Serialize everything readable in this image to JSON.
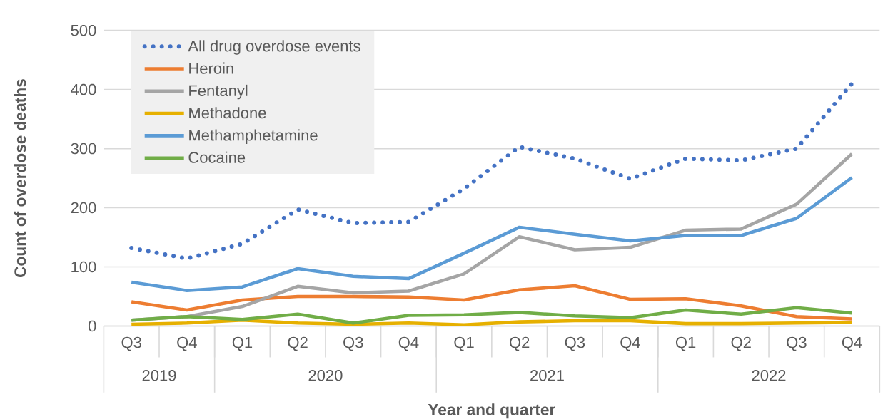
{
  "chart_data": {
    "type": "line",
    "xlabel": "Year and quarter",
    "ylabel": "Count of overdose deaths",
    "categories": [
      "Q3",
      "Q4",
      "Q1",
      "Q2",
      "Q3",
      "Q4",
      "Q1",
      "Q2",
      "Q3",
      "Q4",
      "Q1",
      "Q2",
      "Q3",
      "Q4"
    ],
    "annotations": [
      "2019",
      "2020",
      "2021",
      "2022"
    ],
    "ylim": [
      0,
      500
    ],
    "yticks": [
      0,
      100,
      200,
      300,
      400,
      500
    ],
    "grid": "y",
    "legend": "top left",
    "marker": "none",
    "series": [
      {
        "name": "All drug overdose events",
        "color": "#4472c4",
        "line_style": "dotted",
        "values": [
          132,
          114,
          139,
          197,
          174,
          176,
          232,
          303,
          283,
          249,
          283,
          280,
          300,
          410
        ]
      },
      {
        "name": "Heroin",
        "color": "#ed7d31",
        "values": [
          41,
          27,
          44,
          50,
          50,
          49,
          44,
          61,
          68,
          45,
          46,
          34,
          16,
          12
        ]
      },
      {
        "name": "Fentanyl",
        "color": "#a5a5a5",
        "values": [
          10,
          16,
          33,
          67,
          56,
          59,
          88,
          151,
          129,
          133,
          162,
          164,
          206,
          291
        ]
      },
      {
        "name": "Methadone",
        "color": "#e6b000",
        "values": [
          3,
          5,
          10,
          5,
          3,
          5,
          2,
          7,
          9,
          9,
          4,
          4,
          5,
          6
        ]
      },
      {
        "name": "Methamphetamine",
        "color": "#5b9bd5",
        "values": [
          74,
          60,
          66,
          97,
          84,
          80,
          123,
          167,
          155,
          144,
          153,
          153,
          182,
          251
        ]
      },
      {
        "name": "Cocaine",
        "color": "#70ad47",
        "values": [
          10,
          16,
          11,
          20,
          5,
          18,
          19,
          23,
          17,
          14,
          27,
          20,
          31,
          22
        ]
      }
    ]
  }
}
